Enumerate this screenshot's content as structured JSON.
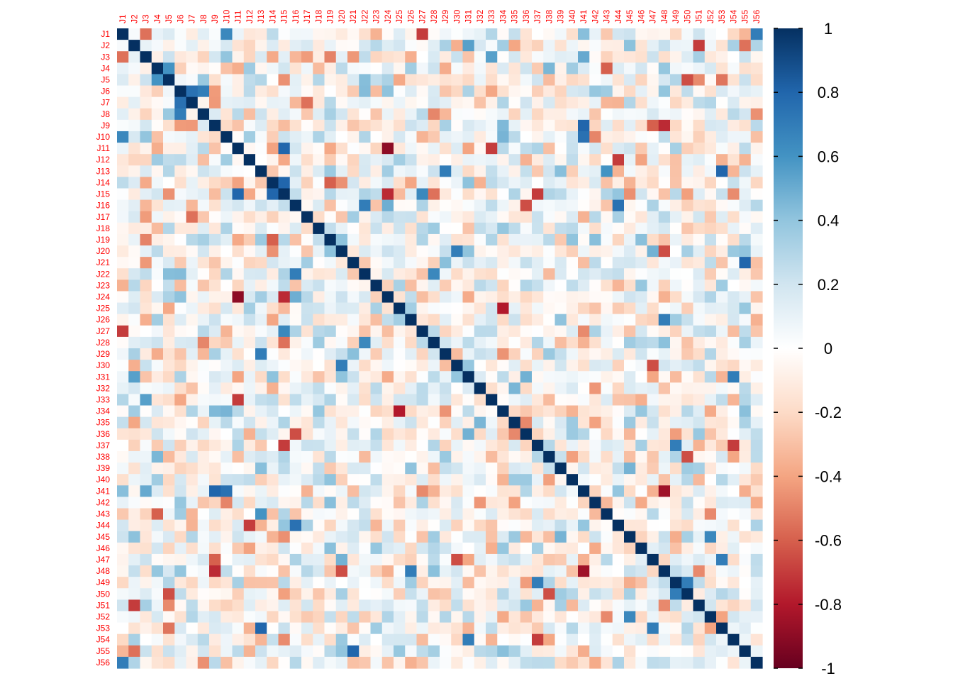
{
  "chart_data": {
    "type": "heatmap",
    "title": "",
    "xlabel": "",
    "ylabel": "",
    "row_labels": [
      "J1",
      "J2",
      "J3",
      "J4",
      "J5",
      "J6",
      "J7",
      "J8",
      "J9",
      "J10",
      "J11",
      "J12",
      "J13",
      "J14",
      "J15",
      "J16",
      "J17",
      "J18",
      "J19",
      "J20",
      "J21",
      "J22",
      "J23",
      "J24",
      "J25",
      "J26",
      "J27",
      "J28",
      "J29",
      "J30",
      "J31",
      "J32",
      "J33",
      "J34",
      "J35",
      "J36",
      "J37",
      "J38",
      "J39",
      "J40",
      "J41",
      "J42",
      "J43",
      "J44",
      "J45",
      "J46",
      "J47",
      "J48",
      "J49",
      "J50",
      "J51",
      "J52",
      "J53",
      "J54",
      "J55",
      "J56"
    ],
    "col_labels": [
      "J1",
      "J2",
      "J3",
      "J4",
      "J5",
      "J6",
      "J7",
      "J8",
      "J9",
      "J10",
      "J11",
      "J12",
      "J13",
      "J14",
      "J15",
      "J16",
      "J17",
      "J18",
      "J19",
      "J20",
      "J21",
      "J22",
      "J23",
      "J24",
      "J25",
      "J26",
      "J27",
      "J28",
      "J29",
      "J30",
      "J31",
      "J32",
      "J33",
      "J34",
      "J35",
      "J36",
      "J37",
      "J38",
      "J39",
      "J40",
      "J41",
      "J42",
      "J43",
      "J44",
      "J45",
      "J46",
      "J47",
      "J48",
      "J49",
      "J50",
      "J51",
      "J52",
      "J53",
      "J54",
      "J55",
      "J56"
    ],
    "matrix_type": "symmetric correlation matrix (diagonal = 1)",
    "value_range": [
      -1,
      1
    ],
    "diagonal": 1,
    "notable_pairs": [
      {
        "row": "J1",
        "col": "J3",
        "value": -0.55
      },
      {
        "row": "J1",
        "col": "J10",
        "value": 0.65
      },
      {
        "row": "J1",
        "col": "J27",
        "value": -0.7
      },
      {
        "row": "J1",
        "col": "J56",
        "value": 0.7
      },
      {
        "row": "J2",
        "col": "J51",
        "value": -0.7
      },
      {
        "row": "J2",
        "col": "J31",
        "value": 0.55
      },
      {
        "row": "J2",
        "col": "J55",
        "value": -0.55
      },
      {
        "row": "J3",
        "col": "J19",
        "value": -0.5
      },
      {
        "row": "J3",
        "col": "J33",
        "value": 0.55
      },
      {
        "row": "J4",
        "col": "J5",
        "value": 0.6
      },
      {
        "row": "J4",
        "col": "J43",
        "value": -0.6
      },
      {
        "row": "J5",
        "col": "J50",
        "value": -0.65
      },
      {
        "row": "J6",
        "col": "J7",
        "value": 0.75
      },
      {
        "row": "J6",
        "col": "J8",
        "value": 0.7
      },
      {
        "row": "J7",
        "col": "J17",
        "value": -0.55
      },
      {
        "row": "J9",
        "col": "J41",
        "value": 0.8
      },
      {
        "row": "J9",
        "col": "J48",
        "value": -0.75
      },
      {
        "row": "J9",
        "col": "J47",
        "value": -0.6
      },
      {
        "row": "J10",
        "col": "J41",
        "value": 0.75
      },
      {
        "row": "J11",
        "col": "J15",
        "value": 0.8
      },
      {
        "row": "J11",
        "col": "J24",
        "value": -0.9
      },
      {
        "row": "J11",
        "col": "J33",
        "value": -0.7
      },
      {
        "row": "J12",
        "col": "J44",
        "value": -0.7
      },
      {
        "row": "J13",
        "col": "J53",
        "value": 0.8
      },
      {
        "row": "J13",
        "col": "J29",
        "value": 0.7
      },
      {
        "row": "J14",
        "col": "J15",
        "value": 0.8
      },
      {
        "row": "J14",
        "col": "J19",
        "value": -0.6
      },
      {
        "row": "J15",
        "col": "J24",
        "value": -0.75
      },
      {
        "row": "J15",
        "col": "J37",
        "value": -0.7
      },
      {
        "row": "J16",
        "col": "J44",
        "value": 0.75
      },
      {
        "row": "J16",
        "col": "J22",
        "value": 0.7
      },
      {
        "row": "J16",
        "col": "J36",
        "value": -0.65
      },
      {
        "row": "J20",
        "col": "J30",
        "value": 0.7
      },
      {
        "row": "J20",
        "col": "J48",
        "value": -0.65
      },
      {
        "row": "J21",
        "col": "J55",
        "value": 0.8
      },
      {
        "row": "J22",
        "col": "J28",
        "value": 0.65
      },
      {
        "row": "J24",
        "col": "J11",
        "value": -0.9
      },
      {
        "row": "J25",
        "col": "J34",
        "value": -0.8
      },
      {
        "row": "J26",
        "col": "J48",
        "value": 0.7
      },
      {
        "row": "J27",
        "col": "J15",
        "value": 0.65
      },
      {
        "row": "J28",
        "col": "J15",
        "value": -0.55
      },
      {
        "row": "J30",
        "col": "J47",
        "value": -0.65
      },
      {
        "row": "J31",
        "col": "J54",
        "value": 0.7
      },
      {
        "row": "J33",
        "col": "J11",
        "value": -0.7
      },
      {
        "row": "J34",
        "col": "J25",
        "value": -0.8
      },
      {
        "row": "J37",
        "col": "J49",
        "value": 0.7
      },
      {
        "row": "J37",
        "col": "J54",
        "value": -0.7
      },
      {
        "row": "J41",
        "col": "J48",
        "value": -0.85
      },
      {
        "row": "J43",
        "col": "J13",
        "value": 0.6
      },
      {
        "row": "J45",
        "col": "J52",
        "value": 0.65
      },
      {
        "row": "J49",
        "col": "J50",
        "value": 0.7
      },
      {
        "row": "J50",
        "col": "J38",
        "value": -0.65
      },
      {
        "row": "J53",
        "col": "J47",
        "value": 0.7
      }
    ],
    "colorbar": {
      "ticks": [
        "1",
        "0.8",
        "0.6",
        "0.4",
        "0.2",
        "0",
        "-0.2",
        "-0.4",
        "-0.6",
        "-0.8",
        "-1"
      ],
      "min": -1,
      "max": 1,
      "colormap": "RdBu (diverging: -1 dark red, 0 white, +1 dark navy)"
    },
    "colors": {
      "label": "#ff0000",
      "neg_extreme": "#67001f",
      "pos_extreme": "#053061",
      "center": "#ffffff"
    },
    "grid": false,
    "legend": "right"
  }
}
